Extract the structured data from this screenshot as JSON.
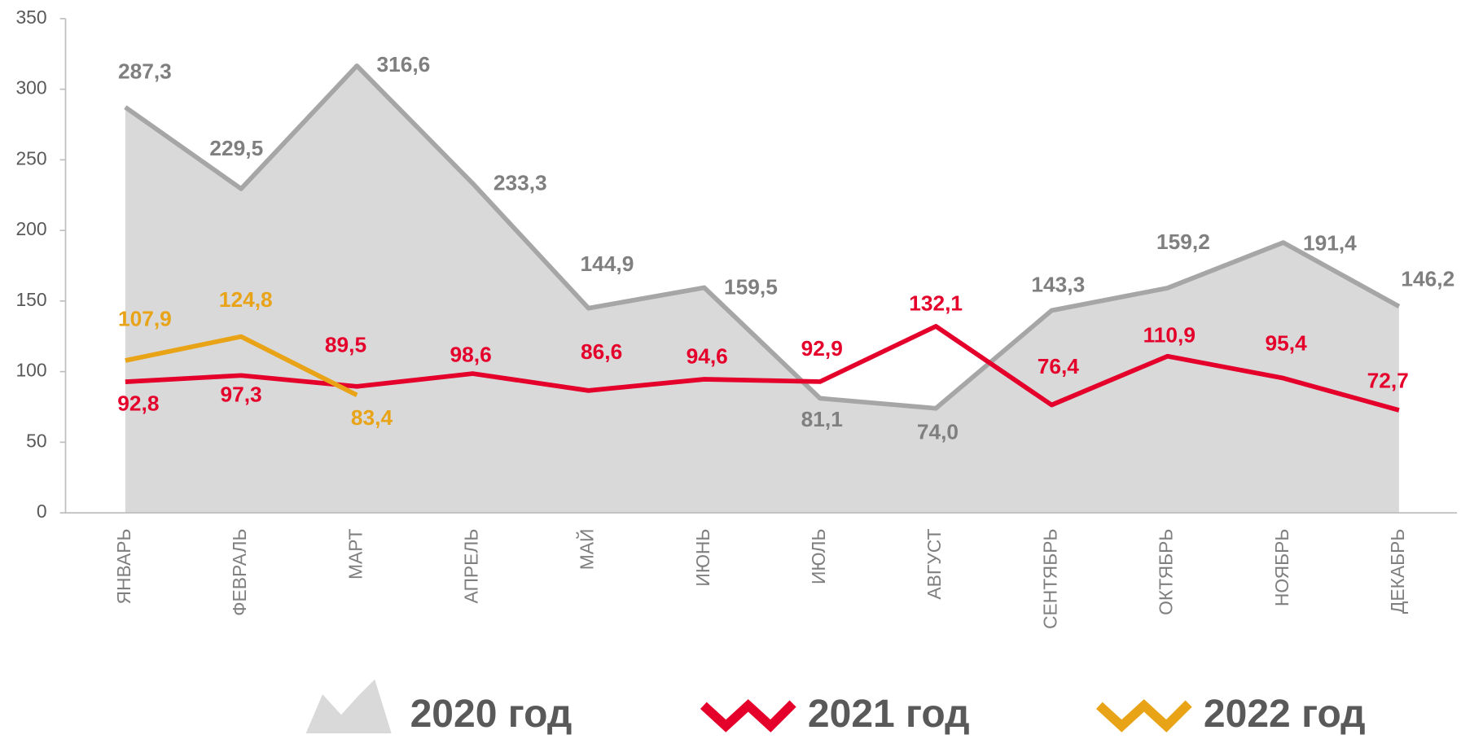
{
  "chart_data": {
    "type": "line",
    "categories": [
      "ЯНВАРЬ",
      "ФЕВРАЛЬ",
      "МАРТ",
      "АПРЕЛЬ",
      "МАЙ",
      "ИЮНЬ",
      "ИЮЛЬ",
      "АВГУСТ",
      "СЕНТЯБРЬ",
      "ОКТЯБРЬ",
      "НОЯБРЬ",
      "ДЕКАБРЬ"
    ],
    "ylim": [
      0,
      350
    ],
    "yticks": [
      0,
      50,
      100,
      150,
      200,
      250,
      300,
      350
    ],
    "legend": "bottom",
    "series": [
      {
        "name": "2020 год",
        "type": "area",
        "color": "#a6a6a6",
        "fill": "#d9d9d9",
        "values": [
          287.3,
          229.5,
          316.6,
          233.3,
          144.9,
          159.5,
          81.1,
          74.0,
          143.3,
          159.2,
          191.4,
          146.2
        ],
        "value_labels": [
          "287,3",
          "229,5",
          "316,6",
          "233,3",
          "144,9",
          "159,5",
          "81,1",
          "74,0",
          "143,3",
          "159,2",
          "191,4",
          "146,2"
        ]
      },
      {
        "name": "2021 год",
        "color": "#e4002b",
        "values": [
          92.8,
          97.3,
          89.5,
          98.6,
          86.6,
          94.6,
          92.9,
          132.1,
          76.4,
          110.9,
          95.4,
          72.7
        ],
        "value_labels": [
          "92,8",
          "97,3",
          "89,5",
          "98,6",
          "86,6",
          "94,6",
          "92,9",
          "132,1",
          "76,4",
          "110,9",
          "95,4",
          "72,7"
        ]
      },
      {
        "name": "2022 год",
        "color": "#e8a317",
        "values": [
          107.9,
          124.8,
          83.4,
          null,
          null,
          null,
          null,
          null,
          null,
          null,
          null,
          null
        ],
        "value_labels": [
          "107,9",
          "124,8",
          "83,4",
          null,
          null,
          null,
          null,
          null,
          null,
          null,
          null,
          null
        ]
      }
    ]
  }
}
